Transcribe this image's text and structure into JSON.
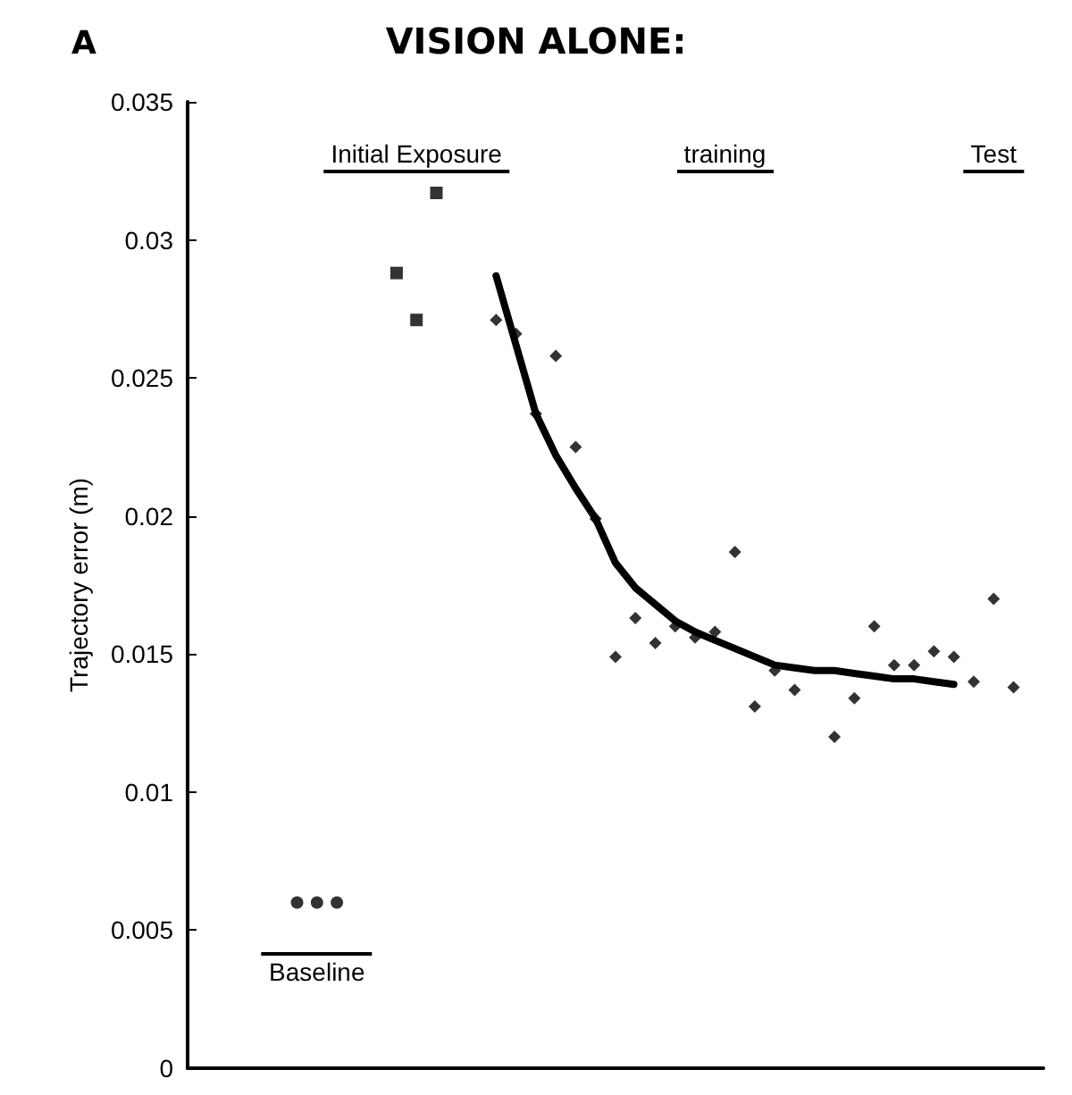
{
  "chart_data": {
    "type": "scatter",
    "title": "VISION ALONE:",
    "ylabel": "Trajectory error (m)",
    "categories": [
      null,
      null,
      null,
      null,
      null,
      null,
      null,
      null,
      null,
      null,
      null,
      null,
      null,
      null,
      null,
      null,
      null,
      null,
      null,
      null,
      null,
      null,
      null,
      null,
      null,
      null,
      null,
      null,
      null,
      null,
      null,
      null,
      null,
      null,
      null,
      null,
      null,
      null,
      null,
      null,
      null,
      null,
      null
    ],
    "ylim": [
      0,
      0.035
    ],
    "yticks": [
      0,
      0.005,
      0.01,
      0.015,
      0.02,
      0.025,
      0.03,
      0.035
    ],
    "tick_labels": "y",
    "grid": false,
    "series": [
      {
        "color": "#000000",
        "marker": "circle",
        "values": [
          null,
          null,
          null,
          null,
          null,
          0.006,
          0.006,
          0.006,
          null,
          null,
          null,
          null,
          null,
          null,
          null,
          null,
          null,
          null,
          null,
          null,
          null,
          null,
          null,
          null,
          null,
          null,
          null,
          null,
          null,
          null,
          null,
          null,
          null,
          null,
          null,
          null,
          null,
          null,
          null,
          null,
          null,
          null,
          null
        ]
      },
      {
        "color": "#000000",
        "marker": "square",
        "values": [
          null,
          null,
          null,
          null,
          null,
          null,
          null,
          null,
          null,
          null,
          0.0288,
          0.0271,
          0.0317,
          null,
          null,
          null,
          null,
          null,
          null,
          null,
          null,
          null,
          null,
          null,
          null,
          null,
          null,
          null,
          null,
          null,
          null,
          null,
          null,
          null,
          null,
          null,
          null,
          null,
          null,
          null,
          null,
          null,
          null
        ]
      },
      {
        "color": "#000000",
        "marker": "diamond",
        "values": [
          null,
          null,
          null,
          null,
          null,
          null,
          null,
          null,
          null,
          null,
          null,
          null,
          null,
          null,
          null,
          0.0271,
          0.0266,
          0.0237,
          0.0258,
          0.0225,
          0.0199,
          0.0149,
          0.0163,
          0.0154,
          0.016,
          0.0156,
          0.0158,
          0.0187,
          0.0131,
          0.0144,
          0.0137,
          null,
          0.012,
          0.0134,
          0.016,
          0.0146,
          0.0146,
          0.0151,
          0.0149,
          null,
          null,
          null,
          null
        ]
      },
      {
        "color": "#000000",
        "marker": "diamond",
        "values": [
          null,
          null,
          null,
          null,
          null,
          null,
          null,
          null,
          null,
          null,
          null,
          null,
          null,
          null,
          null,
          null,
          null,
          null,
          null,
          null,
          null,
          null,
          null,
          null,
          null,
          null,
          null,
          null,
          null,
          null,
          null,
          null,
          null,
          null,
          null,
          null,
          null,
          null,
          null,
          0.014,
          0.017,
          0.0138,
          null
        ]
      },
      {
        "type": "line",
        "color": "#000000",
        "marker": "none",
        "values": [
          null,
          null,
          null,
          null,
          null,
          null,
          null,
          null,
          null,
          null,
          null,
          null,
          null,
          null,
          null,
          0.0287,
          0.0262,
          0.0237,
          0.0222,
          0.021,
          0.0199,
          0.0183,
          0.0174,
          0.0168,
          0.0162,
          0.0158,
          0.0155,
          0.0152,
          0.0149,
          0.0146,
          0.0145,
          0.0144,
          0.0144,
          0.0143,
          0.0142,
          0.0141,
          0.0141,
          0.014,
          0.0139,
          null,
          null,
          null,
          null
        ]
      }
    ],
    "annotations": [
      "Baseline",
      "Initial Exposure",
      "training",
      "Test",
      "A"
    ]
  }
}
